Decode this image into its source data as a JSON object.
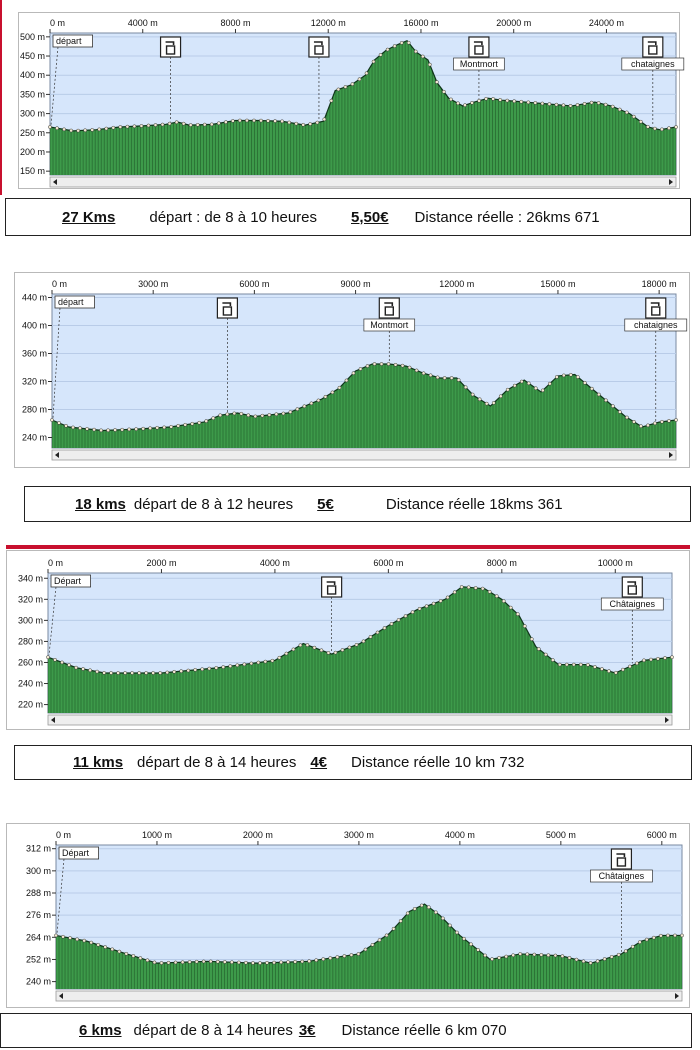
{
  "charts": [
    {
      "xticks": [
        "0 m",
        "4000 m",
        "8000 m",
        "12000 m",
        "16000 m",
        "20000 m",
        "24000 m"
      ],
      "yticks": [
        "500 m",
        "450 m",
        "400 m",
        "350 m",
        "300 m",
        "250 m",
        "200 m",
        "150 m"
      ],
      "markers": [
        "départ",
        "",
        "",
        "Montmort",
        "chataignes"
      ]
    },
    {
      "xticks": [
        "0 m",
        "3000 m",
        "6000 m",
        "9000 m",
        "12000 m",
        "15000 m",
        "18000 m"
      ],
      "yticks": [
        "440 m",
        "400 m",
        "360 m",
        "320 m",
        "280 m",
        "240 m"
      ],
      "markers": [
        "départ",
        "",
        "Montmort",
        "chataignes"
      ]
    },
    {
      "xticks": [
        "0 m",
        "2000 m",
        "4000 m",
        "6000 m",
        "8000 m",
        "10000 m"
      ],
      "yticks": [
        "340 m",
        "320 m",
        "300 m",
        "280 m",
        "260 m",
        "240 m",
        "220 m"
      ],
      "markers": [
        "Départ",
        "",
        "Châtaignes"
      ]
    },
    {
      "xticks": [
        "0 m",
        "1000 m",
        "2000 m",
        "3000 m",
        "4000 m",
        "5000 m",
        "6000 m"
      ],
      "yticks": [
        "312 m",
        "300 m",
        "288 m",
        "276 m",
        "264 m",
        "252 m",
        "240 m"
      ],
      "markers": [
        "Départ",
        "Châtaignes"
      ]
    }
  ],
  "captions": [
    {
      "distance": "27 Kms",
      "depart": "départ : de 8  à 10 heures",
      "price": "5,50€",
      "reelle": "Distance réelle : 26kms 671"
    },
    {
      "distance": "18 kms",
      "depart": "départ de 8 à 12 heures",
      "price": "5€",
      "reelle": "Distance réelle 18kms 361"
    },
    {
      "distance": "11 kms",
      "depart": "départ de 8 à 14 heures",
      "price": "4€",
      "reelle": "Distance réelle 10 km 732"
    },
    {
      "distance": "6 kms",
      "depart": "départ de 8 à 14 heures",
      "price": "3€",
      "reelle": "Distance réelle 6 km 070"
    }
  ],
  "colors": {
    "sky": "#d6e6fb",
    "ground": "#3d9a4a",
    "line": "#0b2a10",
    "caption_border": "#222222",
    "accent_red": "#c8102e"
  },
  "chart_data": [
    {
      "type": "area",
      "xlim": [
        0,
        27000
      ],
      "ylim": [
        140,
        510
      ],
      "x": [
        0,
        1000,
        2000,
        3000,
        4000,
        5000,
        5500,
        6000,
        7000,
        8000,
        9000,
        10000,
        11000,
        11800,
        12300,
        13000,
        13600,
        14000,
        14500,
        15000,
        15400,
        15800,
        16300,
        16700,
        17200,
        17800,
        18300,
        18900,
        19500,
        20500,
        21500,
        22500,
        23500,
        24200,
        25000,
        25800,
        26300,
        27000
      ],
      "y": [
        265,
        255,
        258,
        265,
        268,
        272,
        278,
        270,
        272,
        282,
        282,
        280,
        270,
        280,
        360,
        375,
        400,
        440,
        465,
        480,
        490,
        460,
        440,
        380,
        340,
        320,
        330,
        340,
        335,
        330,
        325,
        320,
        330,
        320,
        300,
        265,
        258,
        265
      ],
      "markers": [
        {
          "x": 0,
          "label": "départ"
        },
        {
          "x": 5200,
          "label": ""
        },
        {
          "x": 11600,
          "label": ""
        },
        {
          "x": 18500,
          "label": "Montmort"
        },
        {
          "x": 26000,
          "label": "chataignes"
        }
      ],
      "grid": true
    },
    {
      "type": "area",
      "xlim": [
        0,
        18500
      ],
      "ylim": [
        225,
        445
      ],
      "x": [
        0,
        500,
        1500,
        2500,
        3500,
        4500,
        5000,
        5500,
        6000,
        7000,
        8000,
        8500,
        9000,
        9500,
        10000,
        10500,
        11000,
        11500,
        12000,
        12500,
        13000,
        13500,
        14000,
        14500,
        15000,
        15500,
        16000,
        16500,
        17000,
        17500,
        18000,
        18500
      ],
      "y": [
        265,
        255,
        250,
        252,
        255,
        262,
        272,
        275,
        270,
        275,
        295,
        310,
        335,
        345,
        345,
        342,
        332,
        325,
        325,
        300,
        285,
        308,
        322,
        305,
        328,
        330,
        310,
        290,
        270,
        255,
        262,
        265
      ],
      "markers": [
        {
          "x": 0,
          "label": "départ"
        },
        {
          "x": 5200,
          "label": ""
        },
        {
          "x": 10000,
          "label": "Montmort"
        },
        {
          "x": 17900,
          "label": "chataignes"
        }
      ],
      "grid": true
    },
    {
      "type": "area",
      "xlim": [
        0,
        11000
      ],
      "ylim": [
        212,
        345
      ],
      "x": [
        0,
        500,
        1000,
        2000,
        3000,
        4000,
        4500,
        5000,
        5500,
        6000,
        6500,
        7000,
        7300,
        7700,
        8000,
        8300,
        8600,
        9000,
        9500,
        10000,
        10500,
        11000
      ],
      "y": [
        265,
        255,
        250,
        250,
        255,
        262,
        278,
        268,
        278,
        295,
        310,
        320,
        332,
        330,
        320,
        305,
        275,
        258,
        258,
        250,
        262,
        265
      ],
      "markers": [
        {
          "x": 0,
          "label": "Départ"
        },
        {
          "x": 5000,
          "label": ""
        },
        {
          "x": 10300,
          "label": "Châtaignes"
        }
      ],
      "grid": true
    },
    {
      "type": "area",
      "xlim": [
        0,
        6200
      ],
      "ylim": [
        236,
        314
      ],
      "x": [
        0,
        300,
        700,
        1000,
        1500,
        2000,
        2500,
        3000,
        3300,
        3500,
        3650,
        3800,
        4000,
        4300,
        4600,
        5000,
        5300,
        5600,
        5800,
        6000,
        6200
      ],
      "y": [
        265,
        262,
        255,
        250,
        251,
        250,
        251,
        255,
        266,
        278,
        282,
        276,
        265,
        252,
        255,
        254,
        250,
        255,
        262,
        265,
        265
      ],
      "markers": [
        {
          "x": 0,
          "label": "Départ"
        },
        {
          "x": 5600,
          "label": "Châtaignes"
        }
      ],
      "grid": true
    }
  ]
}
